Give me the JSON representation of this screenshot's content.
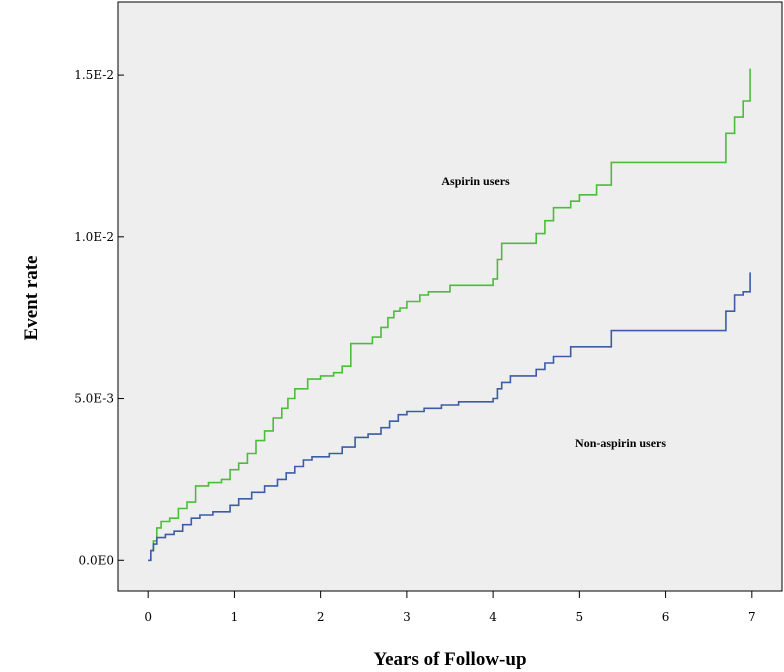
{
  "chart_data": {
    "type": "line",
    "title": "",
    "xlabel": "Years of Follow-up",
    "ylabel": "Event rate",
    "xlim": [
      -0.35,
      7.35
    ],
    "ylim": [
      -0.00095,
      0.01726
    ],
    "x_ticks": [
      0,
      1,
      2,
      3,
      4,
      5,
      6,
      7
    ],
    "x_tick_labels": [
      "0",
      "1",
      "2",
      "3",
      "4",
      "5",
      "6",
      "7"
    ],
    "y_ticks": [
      0,
      0.005,
      0.01,
      0.015
    ],
    "y_tick_labels": [
      "0.0E0",
      "5.0E-3",
      "1.0E-2",
      "1.5E-2"
    ],
    "grid": false,
    "plot_background": "#eeeeee",
    "annotations": [
      {
        "text": "Aspirin users",
        "x": 3.4,
        "y": 0.0116
      },
      {
        "text": "Non-aspirin users",
        "x": 4.95,
        "y": 0.0035
      }
    ],
    "series": [
      {
        "name": "Aspirin users",
        "color": "#4cbc3c",
        "x": [
          0,
          0.03,
          0.06,
          0.1,
          0.15,
          0.25,
          0.35,
          0.45,
          0.55,
          0.7,
          0.85,
          0.95,
          1.05,
          1.15,
          1.25,
          1.35,
          1.45,
          1.55,
          1.62,
          1.7,
          1.85,
          2.0,
          2.15,
          2.25,
          2.35,
          2.6,
          2.7,
          2.78,
          2.85,
          2.92,
          3.0,
          3.15,
          3.25,
          3.5,
          4.0,
          4.05,
          4.1,
          4.5,
          4.6,
          4.7,
          4.9,
          5.0,
          5.2,
          5.37,
          6.7,
          6.8,
          6.9,
          6.98
        ],
        "y": [
          0,
          0.0003,
          0.0006,
          0.001,
          0.0012,
          0.0013,
          0.0016,
          0.0018,
          0.0023,
          0.0024,
          0.0025,
          0.0028,
          0.003,
          0.0033,
          0.0037,
          0.004,
          0.0044,
          0.0047,
          0.005,
          0.0053,
          0.0056,
          0.0057,
          0.0058,
          0.006,
          0.0067,
          0.0069,
          0.0072,
          0.0075,
          0.0077,
          0.0078,
          0.008,
          0.0082,
          0.0083,
          0.0085,
          0.0087,
          0.0093,
          0.0098,
          0.0101,
          0.0105,
          0.0109,
          0.0111,
          0.0113,
          0.0116,
          0.0123,
          0.0132,
          0.0137,
          0.0142,
          0.0152
        ]
      },
      {
        "name": "Non-aspirin users",
        "color": "#3c5ca8",
        "x": [
          0,
          0.03,
          0.06,
          0.1,
          0.2,
          0.3,
          0.4,
          0.5,
          0.6,
          0.75,
          0.95,
          1.05,
          1.2,
          1.35,
          1.5,
          1.6,
          1.7,
          1.8,
          1.9,
          2.1,
          2.25,
          2.4,
          2.55,
          2.7,
          2.8,
          2.9,
          3.0,
          3.2,
          3.4,
          3.6,
          4.0,
          4.05,
          4.1,
          4.2,
          4.5,
          4.6,
          4.7,
          4.9,
          5.37,
          6.7,
          6.8,
          6.9,
          6.98
        ],
        "y": [
          0,
          0.0003,
          0.0005,
          0.0007,
          0.0008,
          0.0009,
          0.0011,
          0.0013,
          0.0014,
          0.0015,
          0.0017,
          0.0019,
          0.0021,
          0.0023,
          0.0025,
          0.0027,
          0.0029,
          0.0031,
          0.0032,
          0.0033,
          0.0035,
          0.0038,
          0.0039,
          0.0041,
          0.0043,
          0.0045,
          0.0046,
          0.0047,
          0.0048,
          0.0049,
          0.005,
          0.0053,
          0.0055,
          0.0057,
          0.0059,
          0.0061,
          0.0063,
          0.0066,
          0.0071,
          0.0077,
          0.0082,
          0.0083,
          0.0089
        ]
      }
    ]
  }
}
